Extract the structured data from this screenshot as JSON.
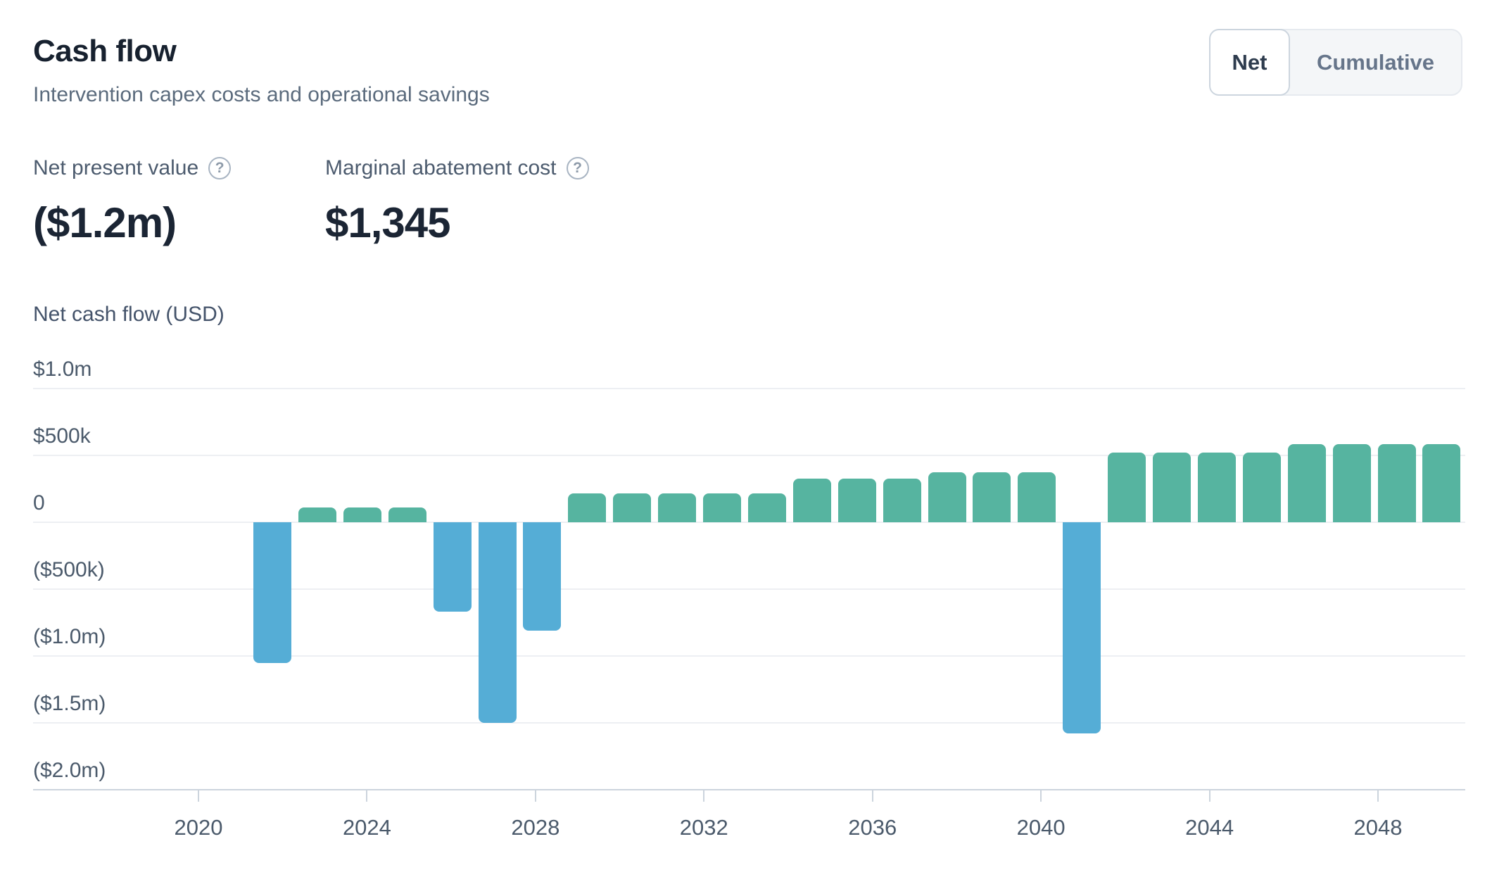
{
  "header": {
    "title": "Cash flow",
    "subtitle": "Intervention capex costs and operational savings"
  },
  "toggle": {
    "net_label": "Net",
    "cumulative_label": "Cumulative",
    "selected": "Net"
  },
  "metrics": {
    "npv": {
      "label": "Net present value",
      "value": "($1.2m)",
      "help_icon": "question-circle"
    },
    "mac": {
      "label": "Marginal abatement cost",
      "value": "$1,345",
      "help_icon": "question-circle"
    }
  },
  "chart_data": {
    "type": "bar",
    "title": "Net cash flow (USD)",
    "xlabel": "",
    "ylabel": "Net cash flow (USD)",
    "x": [
      2022,
      2023,
      2024,
      2025,
      2026,
      2027,
      2028,
      2029,
      2030,
      2031,
      2032,
      2033,
      2034,
      2035,
      2036,
      2037,
      2038,
      2039,
      2040,
      2041,
      2042,
      2043,
      2044,
      2045,
      2046,
      2047,
      2048
    ],
    "values_usd_thousands": [
      -1050,
      110,
      110,
      110,
      -670,
      -1500,
      -810,
      215,
      215,
      215,
      215,
      215,
      325,
      325,
      325,
      375,
      375,
      375,
      -1580,
      520,
      520,
      520,
      520,
      585,
      585,
      585,
      585
    ],
    "y_tick_labels": [
      "$1.0m",
      "$500k",
      "0",
      "($500k)",
      "($1.0m)",
      "($1.5m)",
      "($2.0m)"
    ],
    "y_tick_values_thousands": [
      1000,
      500,
      0,
      -500,
      -1000,
      -1500,
      -2000
    ],
    "x_tick_labels": [
      "2020",
      "2024",
      "2028",
      "2032",
      "2036",
      "2040",
      "2044",
      "2048"
    ],
    "ylim_thousands": [
      -2000,
      1000
    ],
    "grid": true,
    "legend": false,
    "positive_color": "#56b4a0",
    "negative_color": "#55add6"
  }
}
